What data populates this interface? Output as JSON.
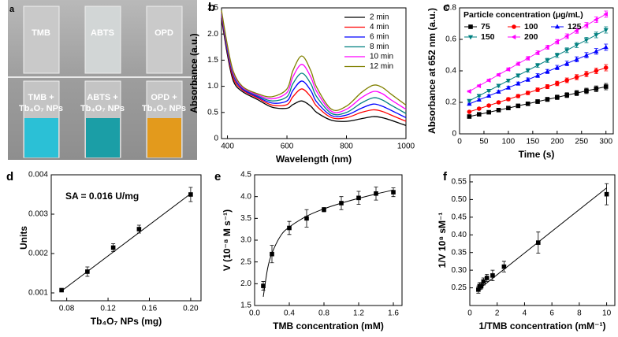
{
  "photo": {
    "panel": "a",
    "top_labels": [
      "TMB",
      "ABTS",
      "OPD"
    ],
    "bottom_labels": [
      [
        "TMB +",
        "Tb₄O₇ NPs"
      ],
      [
        "ABTS +",
        "Tb₄O₇ NPs"
      ],
      [
        "OPD +",
        "Tb₄O₇ NPs"
      ]
    ]
  },
  "chart_data": [
    {
      "type": "line",
      "panel": "b",
      "x_label": "Wavelength (nm)",
      "y_label": "Absorbance (a.u.)",
      "x": [
        380,
        400,
        420,
        450,
        500,
        550,
        600,
        620,
        650,
        680,
        700,
        750,
        800,
        850,
        890,
        920,
        950,
        1000
      ],
      "xlim": [
        380,
        1000
      ],
      "xticks": [
        400,
        600,
        800,
        1000
      ],
      "ylim": [
        0,
        2.5
      ],
      "yticks": [
        0.0,
        0.5,
        {
          "value": 1,
          "label": "1.0"
        },
        1.5,
        {
          "value": 2,
          "label": "2.0"
        },
        2.5
      ],
      "legend": "upper right",
      "series": [
        {
          "name": "2 min",
          "color": "#000000",
          "values": [
            2.3,
            1.6,
            1.1,
            0.9,
            0.75,
            0.6,
            0.58,
            0.65,
            0.72,
            0.62,
            0.5,
            0.35,
            0.33,
            0.38,
            0.42,
            0.4,
            0.35,
            0.25
          ]
        },
        {
          "name": "4 min",
          "color": "#ff0000",
          "values": [
            2.35,
            1.65,
            1.15,
            0.93,
            0.78,
            0.64,
            0.65,
            0.8,
            0.95,
            0.8,
            0.62,
            0.4,
            0.4,
            0.5,
            0.55,
            0.52,
            0.45,
            0.33
          ]
        },
        {
          "name": "6 min",
          "color": "#0000ff",
          "values": [
            2.38,
            1.68,
            1.2,
            0.95,
            0.8,
            0.68,
            0.72,
            0.92,
            1.1,
            0.92,
            0.7,
            0.44,
            0.45,
            0.58,
            0.66,
            0.62,
            0.54,
            0.4
          ]
        },
        {
          "name": "8 min",
          "color": "#008080",
          "values": [
            2.4,
            1.72,
            1.22,
            0.97,
            0.82,
            0.72,
            0.8,
            1.05,
            1.25,
            1.05,
            0.8,
            0.48,
            0.5,
            0.68,
            0.78,
            0.74,
            0.64,
            0.48
          ]
        },
        {
          "name": "10 min",
          "color": "#ff00ff",
          "values": [
            2.42,
            1.75,
            1.25,
            0.98,
            0.84,
            0.76,
            0.88,
            1.18,
            1.42,
            1.18,
            0.9,
            0.52,
            0.56,
            0.78,
            0.9,
            0.86,
            0.74,
            0.56
          ]
        },
        {
          "name": "12 min",
          "color": "#808000",
          "values": [
            2.45,
            1.78,
            1.28,
            1.0,
            0.86,
            0.8,
            0.95,
            1.3,
            1.58,
            1.3,
            0.98,
            0.56,
            0.62,
            0.88,
            1.02,
            0.98,
            0.85,
            0.64
          ]
        }
      ]
    },
    {
      "type": "scatter",
      "panel": "c",
      "x_label": "Time (s)",
      "y_label": "Absorbance at 652 nm (a.u.)",
      "legend_title": "Particle concentration (μg/mL)",
      "legend": "upper left",
      "connect": true,
      "x": [
        20,
        40,
        60,
        80,
        100,
        120,
        140,
        160,
        180,
        200,
        220,
        240,
        260,
        280,
        300
      ],
      "xlim": [
        0,
        315
      ],
      "xticks": [
        0,
        50,
        100,
        150,
        200,
        250,
        300
      ],
      "ylim": [
        0,
        0.8
      ],
      "yticks": [
        0.0,
        0.2,
        0.4,
        0.6,
        0.8
      ],
      "series": [
        {
          "name": "75",
          "color": "#000000",
          "marker": "square",
          "values": [
            0.11,
            0.124,
            0.137,
            0.151,
            0.164,
            0.178,
            0.191,
            0.205,
            0.219,
            0.232,
            0.246,
            0.259,
            0.273,
            0.286,
            0.3
          ],
          "errors": [
            0.005,
            0.006,
            0.007,
            0.008,
            0.009,
            0.01,
            0.011,
            0.012,
            0.013,
            0.014,
            0.015,
            0.016,
            0.017,
            0.018,
            0.02
          ]
        },
        {
          "name": "100",
          "color": "#ff0000",
          "marker": "circle",
          "values": [
            0.14,
            0.16,
            0.18,
            0.2,
            0.22,
            0.24,
            0.26,
            0.28,
            0.3,
            0.32,
            0.34,
            0.36,
            0.38,
            0.4,
            0.42
          ],
          "errors": [
            0.005,
            0.006,
            0.007,
            0.008,
            0.009,
            0.01,
            0.011,
            0.012,
            0.013,
            0.014,
            0.015,
            0.016,
            0.017,
            0.018,
            0.02
          ]
        },
        {
          "name": "125",
          "color": "#0000ff",
          "marker": "triangle-up",
          "values": [
            0.19,
            0.216,
            0.241,
            0.267,
            0.293,
            0.319,
            0.344,
            0.37,
            0.396,
            0.421,
            0.447,
            0.473,
            0.499,
            0.524,
            0.55
          ],
          "errors": [
            0.005,
            0.006,
            0.007,
            0.008,
            0.009,
            0.01,
            0.011,
            0.012,
            0.013,
            0.014,
            0.015,
            0.016,
            0.017,
            0.018,
            0.02
          ]
        },
        {
          "name": "150",
          "color": "#008080",
          "marker": "triangle-down",
          "values": [
            0.21,
            0.242,
            0.274,
            0.306,
            0.339,
            0.371,
            0.403,
            0.435,
            0.467,
            0.499,
            0.531,
            0.564,
            0.596,
            0.628,
            0.66
          ],
          "errors": [
            0.005,
            0.006,
            0.007,
            0.008,
            0.009,
            0.01,
            0.011,
            0.012,
            0.013,
            0.014,
            0.015,
            0.016,
            0.017,
            0.018,
            0.02
          ]
        },
        {
          "name": "200",
          "color": "#ff00ff",
          "marker": "triangle-left",
          "values": [
            0.27,
            0.305,
            0.34,
            0.375,
            0.41,
            0.445,
            0.48,
            0.515,
            0.55,
            0.585,
            0.62,
            0.655,
            0.69,
            0.725,
            0.76
          ],
          "errors": [
            0.005,
            0.006,
            0.007,
            0.008,
            0.009,
            0.01,
            0.011,
            0.012,
            0.013,
            0.014,
            0.015,
            0.016,
            0.017,
            0.018,
            0.02
          ]
        }
      ]
    },
    {
      "type": "scatter",
      "panel": "d",
      "x_label": "Tb₄O₇ NPs (mg)",
      "y_label": "Units",
      "annotation": "SA = 0.016 U/mg",
      "x": [
        0.075,
        0.1,
        0.125,
        0.15,
        0.2
      ],
      "xlim": [
        0.065,
        0.21
      ],
      "xticks": [
        0.08,
        0.12,
        0.16,
        {
          "value": 0.2,
          "label": "0.20"
        }
      ],
      "ylim": [
        0.0008,
        0.004
      ],
      "yticks": [
        0.001,
        0.002,
        0.003,
        0.004
      ],
      "series": [
        {
          "color": "#000000",
          "marker": "square",
          "values": [
            0.00107,
            0.00154,
            0.00215,
            0.00262,
            0.0035
          ],
          "errors": [
            3e-05,
            0.00012,
            0.0001,
            0.0001,
            0.00018
          ]
        }
      ],
      "fit": {
        "x": [
          0.075,
          0.2
        ],
        "y": [
          0.00105,
          0.00352
        ]
      }
    },
    {
      "type": "scatter",
      "panel": "e",
      "x_label": "TMB concentration (mM)",
      "y_label": "V (10⁻⁸ M s⁻¹)",
      "x": [
        0.1,
        0.2,
        0.4,
        0.6,
        0.8,
        1.0,
        1.2,
        1.4,
        1.6
      ],
      "xlim": [
        0,
        1.7
      ],
      "xticks": [
        {
          "value": 0,
          "label": "0.0"
        },
        0.4,
        0.8,
        1.2,
        1.6
      ],
      "ylim": [
        1.5,
        4.5
      ],
      "yticks": [
        1.5,
        {
          "value": 2,
          "label": "2.0"
        },
        2.5,
        {
          "value": 3,
          "label": "3.0"
        },
        3.5,
        {
          "value": 4,
          "label": "4.0"
        },
        4.5
      ],
      "series": [
        {
          "color": "#000000",
          "marker": "square",
          "values": [
            1.95,
            2.68,
            3.28,
            3.5,
            3.7,
            3.85,
            3.97,
            4.07,
            4.1
          ],
          "errors": [
            0.1,
            0.2,
            0.15,
            0.2,
            0.05,
            0.15,
            0.15,
            0.15,
            0.1
          ]
        }
      ],
      "fit": {
        "x": [
          0.1,
          0.15,
          0.2,
          0.3,
          0.4,
          0.6,
          0.8,
          1.0,
          1.2,
          1.4,
          1.6
        ],
        "y": [
          1.7,
          2.35,
          2.7,
          3.1,
          3.3,
          3.55,
          3.72,
          3.85,
          3.96,
          4.06,
          4.15
        ]
      }
    },
    {
      "type": "scatter",
      "panel": "f",
      "x_label": "1/TMB concentration (mM⁻¹)",
      "y_label": "1/V 10⁸ sM⁻¹",
      "x": [
        0.625,
        0.714,
        0.833,
        1.0,
        1.25,
        1.667,
        2.5,
        5,
        10
      ],
      "xlim": [
        0,
        10.6
      ],
      "xticks": [
        0,
        2,
        4,
        6,
        8,
        10
      ],
      "ylim": [
        0.2,
        0.57
      ],
      "yticks": [
        0.25,
        {
          "value": 0.3,
          "label": "0.30"
        },
        0.35,
        {
          "value": 0.4,
          "label": "0.40"
        },
        0.45,
        {
          "value": 0.5,
          "label": "0.50"
        },
        0.55
      ],
      "series": [
        {
          "color": "#000000",
          "marker": "square",
          "values": [
            0.245,
            0.255,
            0.255,
            0.268,
            0.278,
            0.285,
            0.31,
            0.378,
            0.515
          ],
          "errors": [
            0.01,
            0.01,
            0.008,
            0.01,
            0.01,
            0.015,
            0.015,
            0.03,
            0.03
          ]
        }
      ],
      "fit": {
        "x": [
          0.625,
          10
        ],
        "y": [
          0.245,
          0.533
        ]
      }
    }
  ]
}
